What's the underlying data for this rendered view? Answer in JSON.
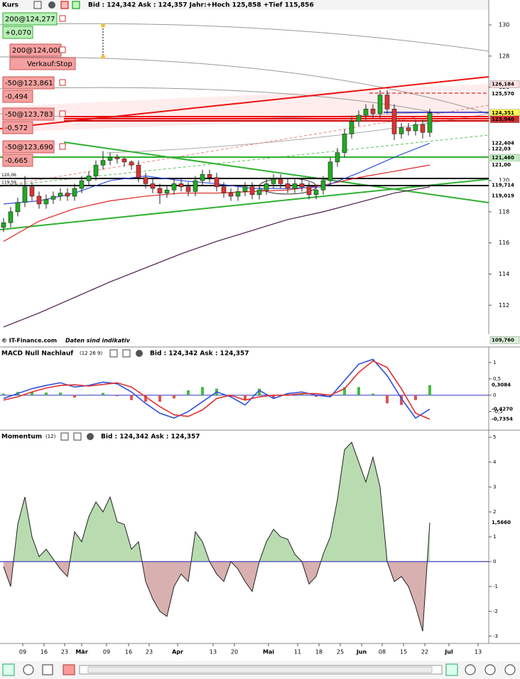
{
  "header": {
    "title": "Kurs",
    "quote": "Bid : 124,342 Ask : 124,357 Jahr:+Hoch 125,858 +Tief 115,856"
  },
  "orders": [
    {
      "text": "200@124,277",
      "pnl": "+0,070"
    },
    {
      "text": "200@124,008",
      "pnl": "Verkauf:Stop"
    },
    {
      "text": "-50@123,861",
      "pnl": "-0,494"
    },
    {
      "text": "-50@123,783",
      "pnl": "-0,572"
    },
    {
      "text": "-50@123,690",
      "pnl": "-0,665"
    }
  ],
  "price_panel": {
    "ylim": [
      110.14,
      131.6
    ],
    "yticks": [
      112,
      114,
      116,
      118,
      120,
      122,
      124,
      126,
      128,
      130
    ],
    "candles": [
      [
        117.0,
        117.6,
        116.7,
        117.3
      ],
      [
        117.3,
        118.3,
        117.0,
        118.0
      ],
      [
        118.0,
        118.9,
        117.7,
        118.6
      ],
      [
        118.6,
        120.3,
        118.3,
        119.6
      ],
      [
        119.6,
        119.9,
        118.7,
        119.0
      ],
      [
        119.0,
        119.3,
        118.2,
        118.5
      ],
      [
        118.5,
        119.1,
        118.2,
        118.8
      ],
      [
        118.8,
        119.3,
        118.5,
        119.0
      ],
      [
        119.0,
        119.5,
        118.7,
        119.2
      ],
      [
        119.2,
        119.5,
        118.7,
        119.0
      ],
      [
        119.0,
        119.8,
        118.7,
        119.5
      ],
      [
        119.5,
        120.3,
        119.2,
        120.0
      ],
      [
        120.0,
        120.6,
        119.7,
        120.3
      ],
      [
        120.3,
        121.3,
        120.0,
        121.0
      ],
      [
        121.0,
        121.9,
        120.7,
        121.3
      ],
      [
        121.3,
        121.8,
        121.0,
        121.5
      ],
      [
        121.5,
        121.7,
        121.1,
        121.4
      ],
      [
        121.4,
        121.5,
        120.9,
        121.2
      ],
      [
        121.2,
        121.3,
        120.7,
        121.0
      ],
      [
        121.0,
        121.3,
        119.9,
        120.2
      ],
      [
        120.2,
        120.5,
        119.5,
        119.8
      ],
      [
        119.8,
        120.1,
        119.2,
        119.5
      ],
      [
        119.5,
        119.8,
        118.5,
        119.2
      ],
      [
        119.2,
        119.7,
        118.9,
        119.4
      ],
      [
        119.4,
        120.1,
        119.1,
        119.8
      ],
      [
        119.8,
        120.1,
        119.3,
        119.6
      ],
      [
        119.6,
        119.9,
        119.0,
        119.3
      ],
      [
        119.3,
        120.3,
        119.0,
        120.0
      ],
      [
        120.0,
        120.7,
        119.7,
        120.4
      ],
      [
        120.4,
        120.7,
        119.9,
        120.2
      ],
      [
        120.2,
        120.5,
        119.3,
        119.6
      ],
      [
        119.6,
        119.9,
        118.9,
        119.2
      ],
      [
        119.2,
        119.5,
        118.7,
        119.0
      ],
      [
        119.0,
        119.6,
        118.7,
        119.3
      ],
      [
        119.3,
        119.9,
        119.0,
        119.6
      ],
      [
        119.6,
        119.9,
        118.8,
        119.1
      ],
      [
        119.1,
        119.7,
        118.8,
        119.4
      ],
      [
        119.4,
        120.1,
        119.1,
        119.8
      ],
      [
        119.8,
        120.4,
        119.5,
        120.1
      ],
      [
        120.1,
        120.4,
        119.5,
        119.8
      ],
      [
        119.8,
        120.1,
        119.2,
        119.5
      ],
      [
        119.5,
        120.1,
        119.2,
        119.8
      ],
      [
        119.8,
        120.1,
        119.3,
        119.6
      ],
      [
        119.6,
        119.9,
        118.8,
        119.1
      ],
      [
        119.1,
        119.7,
        118.8,
        119.4
      ],
      [
        119.4,
        120.3,
        119.1,
        120.0
      ],
      [
        120.0,
        121.5,
        119.7,
        121.2
      ],
      [
        121.2,
        122.1,
        120.9,
        121.8
      ],
      [
        121.8,
        123.3,
        121.5,
        123.0
      ],
      [
        123.0,
        124.1,
        122.7,
        123.8
      ],
      [
        123.8,
        124.5,
        123.5,
        124.2
      ],
      [
        124.2,
        124.9,
        123.9,
        124.6
      ],
      [
        124.6,
        124.9,
        124.0,
        124.3
      ],
      [
        124.3,
        125.8,
        124.0,
        125.5
      ],
      [
        125.5,
        125.8,
        124.3,
        124.6
      ],
      [
        124.6,
        124.9,
        122.6,
        123.0
      ],
      [
        123.0,
        123.7,
        122.7,
        123.4
      ],
      [
        123.4,
        123.7,
        122.9,
        123.2
      ],
      [
        123.2,
        123.9,
        122.9,
        123.6
      ],
      [
        123.6,
        123.9,
        122.7,
        123.1
      ],
      [
        123.1,
        124.6,
        122.8,
        124.35
      ]
    ],
    "averages": [
      {
        "color": "#4b1b4b",
        "values": [
          110.6,
          111.5,
          112.5,
          113.5,
          114.4,
          115.3,
          116.1,
          116.8,
          117.5,
          118.0,
          118.6,
          119.2,
          119.6
        ]
      },
      {
        "color": "#e02020",
        "values": [
          116.1,
          117.4,
          118.2,
          118.7,
          119.0,
          119.2,
          119.2,
          119.3,
          119.4,
          119.7,
          120.2,
          120.6,
          121.0
        ]
      },
      {
        "color": "#3050e0",
        "values": [
          118.5,
          118.7,
          119.2,
          120.0,
          120.3,
          120.0,
          119.8,
          119.5,
          119.5,
          119.6,
          120.5,
          121.5,
          122.4
        ]
      }
    ],
    "levels": [
      {
        "value": 126.184,
        "label": "126,184",
        "color": "#c00000",
        "bg": "#fde0e0"
      },
      {
        "value": 125.57,
        "label": "125,570",
        "color": "#900000",
        "bg": "#ffffff"
      },
      {
        "value": 124.351,
        "label": "124,351",
        "color": "#000000",
        "bg": "#ffff40"
      },
      {
        "value": 123.94,
        "label": "123,940",
        "color": "#ffffff",
        "bg": "#d03030"
      },
      {
        "value": 122.404,
        "label": "122,404",
        "color": "#004000",
        "bg": "#ffffff"
      },
      {
        "value": 122.03,
        "label": "122,03",
        "color": "#8080a0",
        "bg": "#ffffff"
      },
      {
        "value": 121.46,
        "label": "121,460",
        "color": "#003000",
        "bg": "#c0f0c0"
      },
      {
        "value": 121.0,
        "label": "121,00",
        "color": "#e02020",
        "bg": "#ffffff"
      },
      {
        "value": 119.714,
        "label": "119,714",
        "color": "#000000",
        "bg": "#ffffff"
      },
      {
        "value": 119.019,
        "label": "119,019",
        "color": "#000000",
        "bg": "#ffffff"
      },
      {
        "value": 109.76,
        "label": "109,760",
        "color": "#003000",
        "bg": "#d8f0d8"
      }
    ],
    "left_levels": [
      {
        "value": 120.06,
        "label": "120,06"
      },
      {
        "value": 119.59,
        "label": "119,59"
      }
    ],
    "footer": "© IT-Finance.com",
    "note": "Daten sind indikativ"
  },
  "macd_panel": {
    "title": "MACD Null Nachlauf",
    "params": "(12 26 9)",
    "quote": "Bid : 124,342 Ask : 124,357",
    "ylim": [
      -1.07,
      1.39
    ],
    "yticks": [
      1,
      {
        "value": 0.5,
        "label": "0,5"
      },
      0,
      {
        "value": -0.5,
        "label": "-0,5"
      }
    ],
    "macd": [
      -0.1,
      0.05,
      0.2,
      0.3,
      0.38,
      0.25,
      0.3,
      0.4,
      0.35,
      0.1,
      -0.25,
      -0.55,
      -0.7,
      -0.5,
      -0.2,
      0.1,
      -0.05,
      -0.3,
      0.15,
      -0.1,
      0.05,
      0.1,
      0.0,
      -0.05,
      0.45,
      0.95,
      1.1,
      0.6,
      -0.1,
      -0.7,
      -0.427
    ],
    "signal": [
      -0.15,
      -0.05,
      0.1,
      0.22,
      0.3,
      0.32,
      0.28,
      0.33,
      0.38,
      0.25,
      -0.05,
      -0.35,
      -0.6,
      -0.65,
      -0.45,
      -0.1,
      0.0,
      -0.15,
      -0.05,
      0.0,
      0.0,
      0.05,
      0.05,
      0.0,
      0.2,
      0.7,
      1.05,
      0.85,
      0.2,
      -0.55,
      -0.7354
    ],
    "hist": [
      0.05,
      0.1,
      0.1,
      0.08,
      0.08,
      -0.07,
      0.02,
      0.07,
      -0.03,
      -0.15,
      -0.2,
      -0.2,
      -0.1,
      0.15,
      0.25,
      0.2,
      -0.05,
      -0.15,
      0.2,
      -0.1,
      0.05,
      0.05,
      -0.05,
      -0.05,
      0.25,
      0.25,
      0.05,
      -0.25,
      -0.3,
      -0.15,
      0.3084
    ],
    "value_labels": {
      "hist": "0,3084",
      "macd": "-0,4270",
      "signal": "-0,7354"
    }
  },
  "momentum_panel": {
    "title": "Momentum",
    "params": "(12)",
    "quote": "Bid : 124,342 Ask : 124,357",
    "ylim": [
      -3.29,
      5.23
    ],
    "yticks": [
      5,
      4,
      3,
      2,
      1,
      0,
      -1,
      -2,
      -3
    ],
    "values": [
      -0.2,
      -1.0,
      1.5,
      2.6,
      1.0,
      0.2,
      0.5,
      0.1,
      -0.3,
      -0.6,
      1.2,
      0.8,
      1.8,
      2.4,
      2.0,
      2.6,
      1.6,
      1.5,
      0.5,
      0.8,
      -0.8,
      -1.5,
      -2.0,
      -2.2,
      -1.0,
      -0.5,
      -0.8,
      1.2,
      0.8,
      0.0,
      -0.5,
      -0.8,
      0.0,
      -0.3,
      -0.8,
      -1.2,
      0.0,
      0.8,
      1.3,
      1.0,
      0.9,
      0.3,
      0.0,
      -0.9,
      -0.6,
      0.3,
      1.0,
      2.5,
      4.5,
      4.8,
      4.0,
      3.2,
      4.2,
      3.0,
      0.0,
      -0.8,
      -0.6,
      -1.0,
      -1.8,
      -2.8,
      1.566
    ],
    "value_label": "1,5660"
  },
  "x_axis": {
    "labels": [
      "09",
      "16",
      "23",
      "Mär",
      "09",
      "16",
      "23",
      "Apr",
      "13",
      "20",
      "Mai",
      "11",
      "18",
      "25",
      "Jun",
      "08",
      "15",
      "22",
      "Jul",
      "13"
    ]
  }
}
